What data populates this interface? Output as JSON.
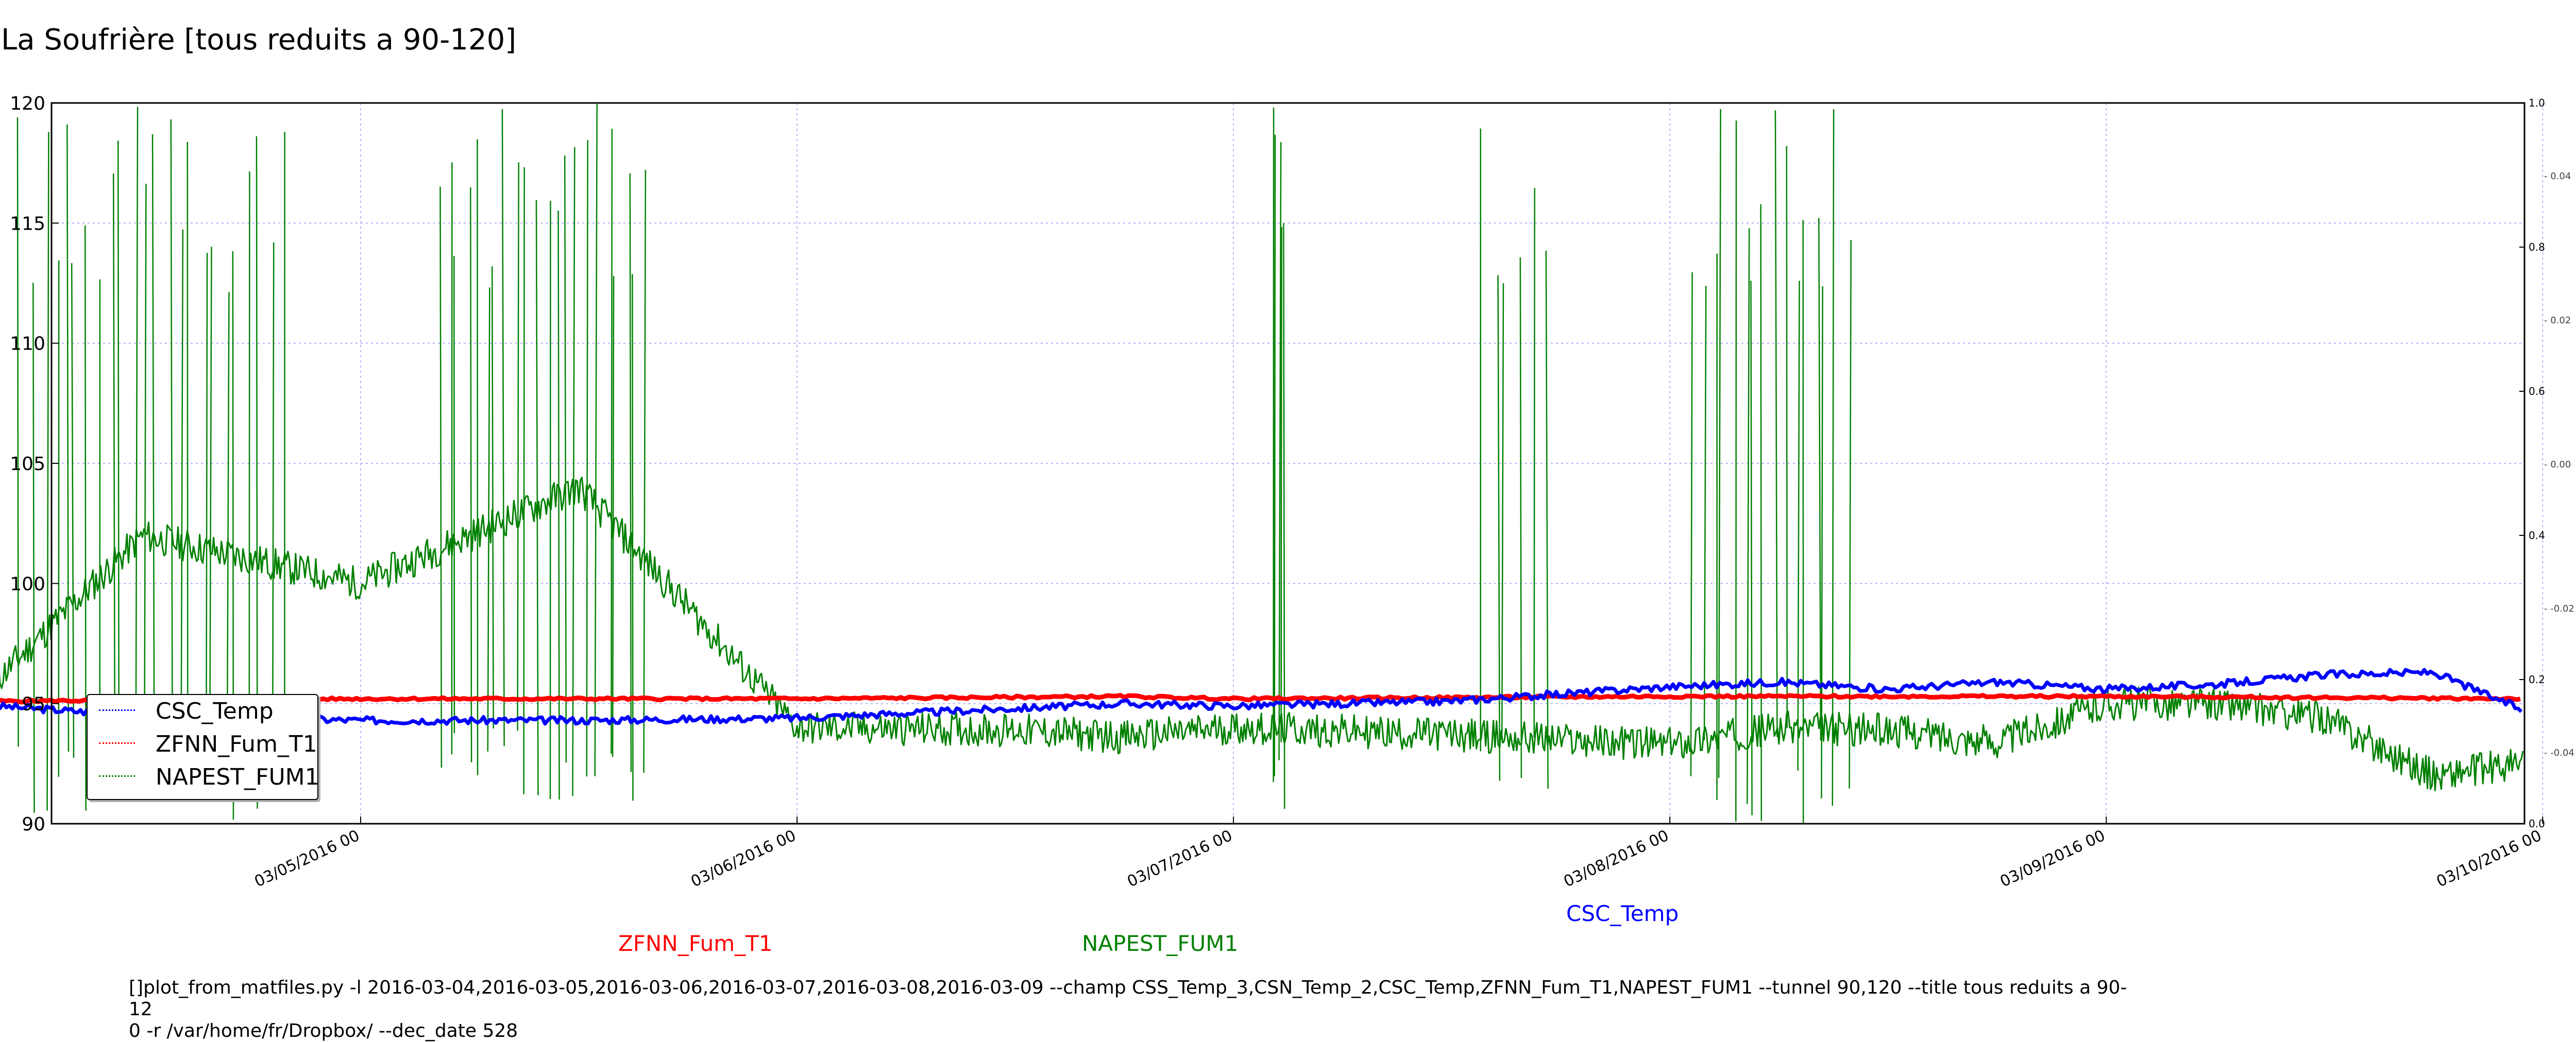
{
  "title": "La Soufrière [tous reduits a 90-120]",
  "command_line": "[]plot_from_matfiles.py -l 2016-03-04,2016-03-05,2016-03-06,2016-03-07,2016-03-08,2016-03-09 --champ CSS_Temp_3,CSN_Temp_2,CSC_Temp,ZFNN_Fum_T1,NAPEST_FUM1 --tunnel 90,120 --title tous reduits a 90-12\n0 -r /var/home/fr/Dropbox/ --dec_date 528",
  "series_labels": {
    "zfnn": "ZFNN_Fum_T1",
    "napest": "NAPEST_FUM1",
    "csc": "CSC_Temp"
  },
  "chart_data": {
    "type": "line",
    "title": "La Soufrière [tous reduits a 90-120]",
    "xlabel": "",
    "ylabel": "",
    "ylim": [
      90,
      120
    ],
    "xlim": [
      "03/04/2016 07",
      "03/09/2016 23"
    ],
    "yticks": [
      90,
      95,
      100,
      105,
      110,
      115,
      120
    ],
    "xticks": [
      "03/05/2016 00",
      "03/06/2016 00",
      "03/07/2016 00",
      "03/08/2016 00",
      "03/09/2016 00",
      "03/10/2016 00"
    ],
    "right_axis_ticks": [
      "1.0",
      "0.8",
      "0.6",
      "0.4",
      "0.2",
      "0.0"
    ],
    "right_axis_minor_ticks": [
      "0.04",
      "0.02",
      "0.00",
      "-0.02",
      "-0.04"
    ],
    "grid": true,
    "legend_position": "lower-left",
    "series": [
      {
        "name": "CSC_Temp",
        "color": "#0000ff",
        "x": [
          "03/04/2016 04",
          "03/04/2016 12",
          "03/05/2016 00",
          "03/05/2016 12",
          "03/06/2016 00",
          "03/06/2016 12",
          "03/06/2016 18",
          "03/07/2016 00",
          "03/07/2016 12",
          "03/08/2016 00",
          "03/08/2016 06",
          "03/08/2016 12",
          "03/08/2016 18",
          "03/09/2016 00",
          "03/09/2016 06",
          "03/09/2016 12",
          "03/09/2016 18",
          "03/09/2016 23"
        ],
        "values": [
          94.9,
          94.5,
          94.3,
          94.3,
          94.4,
          94.8,
          95.0,
          94.9,
          95.1,
          95.7,
          95.9,
          95.6,
          95.9,
          95.6,
          95.8,
          96.2,
          96.3,
          94.7
        ]
      },
      {
        "name": "ZFNN_Fum_T1",
        "color": "#ff0000",
        "x": [
          "03/04/2016 04",
          "03/05/2016 00",
          "03/06/2016 00",
          "03/06/2016 18",
          "03/07/2016 00",
          "03/08/2016 00",
          "03/09/2016 00",
          "03/09/2016 23"
        ],
        "values": [
          95.1,
          95.2,
          95.2,
          95.3,
          95.2,
          95.3,
          95.3,
          95.2
        ]
      },
      {
        "name": "NAPEST_FUM1",
        "color": "#008000",
        "x": [
          "03/04/2016 04",
          "03/04/2016 12",
          "03/05/2016 00",
          "03/05/2016 12",
          "03/06/2016 00",
          "03/06/2016 12",
          "03/06/2016 18",
          "03/07/2016 00",
          "03/07/2016 12",
          "03/08/2016 00",
          "03/08/2016 06",
          "03/08/2016 12",
          "03/08/2016 18",
          "03/09/2016 00",
          "03/09/2016 06",
          "03/09/2016 12",
          "03/09/2016 18",
          "03/09/2016 23"
        ],
        "values": [
          96.0,
          102.0,
          100.0,
          104.0,
          94.0,
          93.9,
          93.6,
          94.0,
          93.7,
          93.3,
          94.0,
          93.9,
          93.4,
          95.0,
          95.0,
          94.4,
          92.0,
          92.5
        ]
      }
    ],
    "spikes": [
      {
        "series": "NAPEST_FUM1",
        "x_from": "03/04/2016 05",
        "x_to": "03/04/2016 20",
        "count": 24
      },
      {
        "series": "NAPEST_FUM1",
        "x_from": "03/05/2016 04",
        "x_to": "03/05/2016 16",
        "count": 22
      },
      {
        "series": "NAPEST_FUM1",
        "x_from": "03/07/2016 02",
        "x_to": "03/07/2016 03",
        "count": 5
      },
      {
        "series": "NAPEST_FUM1",
        "x_from": "03/07/2016 13",
        "x_to": "03/07/2016 18",
        "count": 6
      },
      {
        "series": "NAPEST_FUM1",
        "x_from": "03/08/2016 01",
        "x_to": "03/08/2016 10",
        "count": 16
      }
    ]
  }
}
